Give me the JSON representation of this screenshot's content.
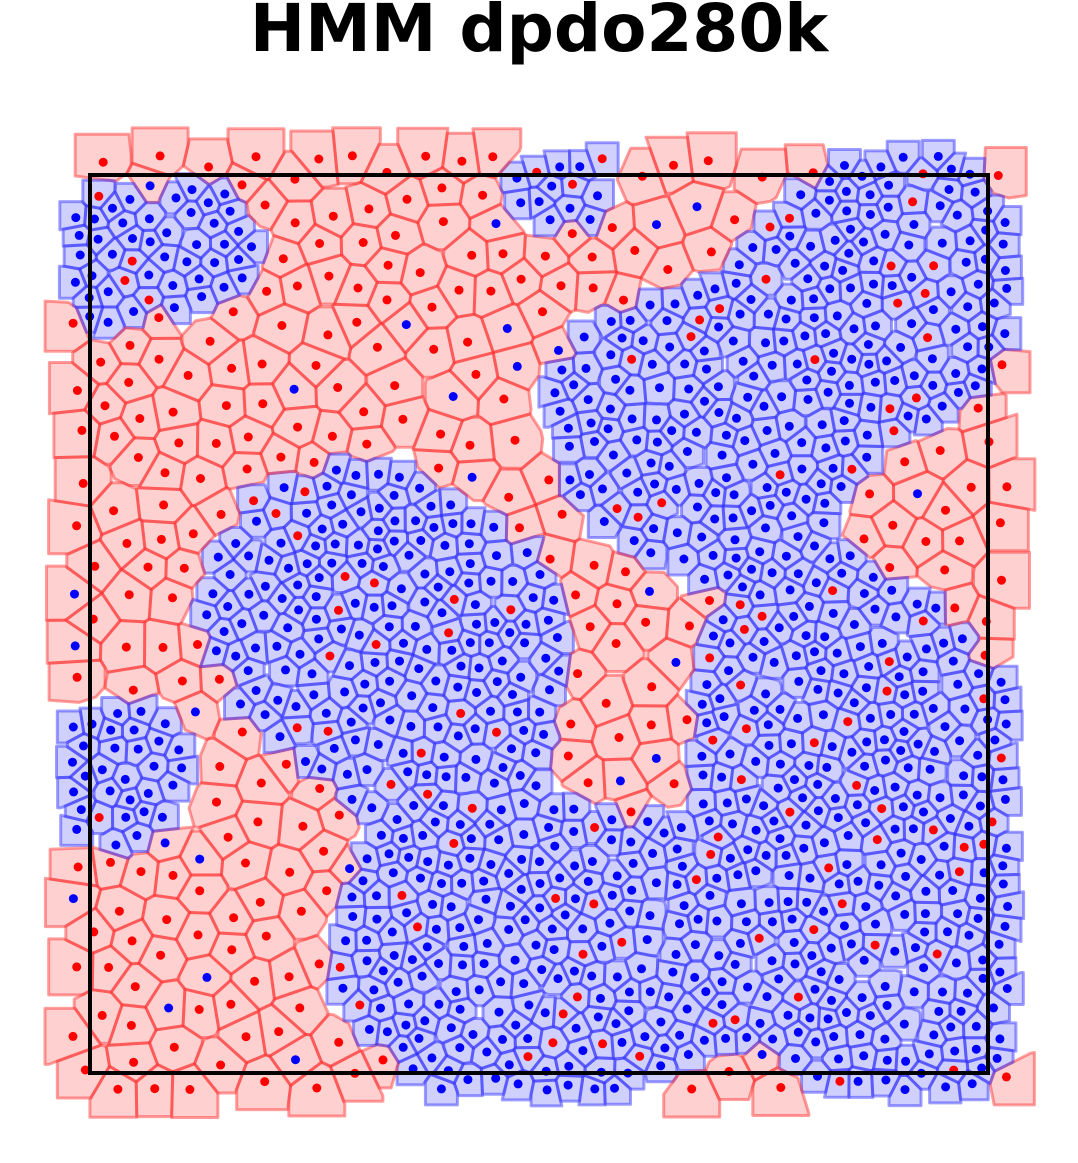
{
  "title": "HMM dpdo280k"
}
